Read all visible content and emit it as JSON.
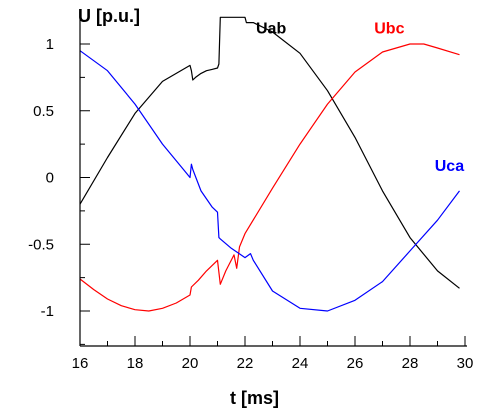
{
  "chart_data": {
    "type": "line",
    "title": "",
    "xlabel": "t [ms]",
    "ylabel": "U [p.u.]",
    "xlim": [
      16,
      30
    ],
    "ylim": [
      -1.25,
      1.2
    ],
    "x_ticks": [
      16,
      18,
      20,
      22,
      24,
      26,
      28,
      30
    ],
    "y_ticks": [
      1,
      0.5,
      0,
      -0.5,
      -1
    ],
    "x_tick_labels": [
      "16",
      "18",
      "20",
      "22",
      "24",
      "26",
      "28",
      "30"
    ],
    "y_tick_labels": [
      "1",
      "0.5",
      "0",
      "-0.5",
      "-1"
    ],
    "grid": false,
    "legend": "labels next to curves",
    "series": [
      {
        "name": "Uab",
        "color": "#000000",
        "x": [
          16,
          17,
          18,
          19,
          20,
          20.05,
          20.1,
          20.2,
          20.4,
          20.6,
          20.8,
          21,
          21.05,
          21.1,
          21.2,
          21.4,
          21.6,
          21.8,
          22,
          22.05,
          22.3,
          22.6,
          23,
          24,
          25,
          26,
          27,
          28,
          29,
          29.8
        ],
        "y": [
          -0.2,
          0.15,
          0.48,
          0.72,
          0.84,
          0.8,
          0.73,
          0.75,
          0.78,
          0.8,
          0.81,
          0.82,
          0.85,
          1.2,
          1.2,
          1.2,
          1.2,
          1.2,
          1.2,
          1.16,
          1.16,
          1.13,
          1.09,
          0.93,
          0.65,
          0.3,
          -0.1,
          -0.45,
          -0.7,
          -0.83
        ]
      },
      {
        "name": "Ubc",
        "color": "#ff0000",
        "x": [
          16,
          16.5,
          17,
          17.5,
          18,
          18.5,
          19,
          19.5,
          20,
          20.05,
          20.3,
          20.6,
          21,
          21.1,
          21.3,
          21.6,
          21.7,
          21.8,
          22,
          23,
          24,
          25,
          26,
          27,
          28,
          28.5,
          29,
          29.8
        ],
        "y": [
          -0.76,
          -0.84,
          -0.91,
          -0.96,
          -0.99,
          -1.0,
          -0.98,
          -0.94,
          -0.88,
          -0.82,
          -0.77,
          -0.7,
          -0.62,
          -0.8,
          -0.7,
          -0.58,
          -0.68,
          -0.52,
          -0.42,
          -0.08,
          0.25,
          0.55,
          0.79,
          0.94,
          1.0,
          1.0,
          0.97,
          0.92
        ]
      },
      {
        "name": "Uca",
        "color": "#0000ff",
        "x": [
          16,
          17,
          18,
          19,
          19.8,
          20,
          20.05,
          20.1,
          20.4,
          20.8,
          21,
          21.05,
          21.1,
          21.5,
          22,
          22.2,
          22.3,
          23,
          24,
          25,
          26,
          27,
          28,
          29,
          29.8
        ],
        "y": [
          0.95,
          0.8,
          0.55,
          0.25,
          0.05,
          0.0,
          0.1,
          0.06,
          -0.1,
          -0.22,
          -0.26,
          -0.45,
          -0.46,
          -0.53,
          -0.6,
          -0.57,
          -0.62,
          -0.85,
          -0.98,
          -1.0,
          -0.92,
          -0.78,
          -0.55,
          -0.32,
          -0.1
        ]
      }
    ],
    "series_labels": [
      {
        "name": "Uab",
        "x": 22.4,
        "y": 1.08
      },
      {
        "name": "Ubc",
        "x": 26.7,
        "y": 1.08
      },
      {
        "name": "Uca",
        "x": 28.9,
        "y": 0.05
      }
    ]
  }
}
